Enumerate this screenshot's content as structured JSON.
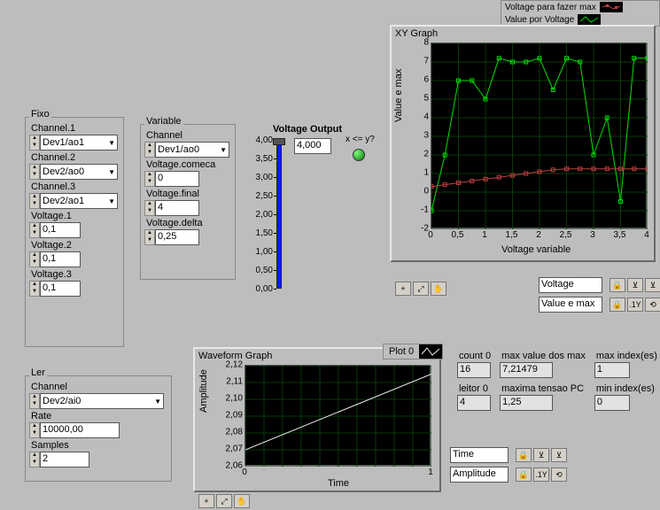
{
  "legend": {
    "series1": {
      "label": "Voltage para fazer max",
      "color": "#c04040"
    },
    "series2": {
      "label": "Value por Voltage",
      "color": "#00e000"
    }
  },
  "xy_graph": {
    "title": "XY Graph",
    "xlabel": "Voltage variable",
    "ylabel": "Value e max",
    "xticks": [
      "0",
      "0,5",
      "1",
      "1,5",
      "2",
      "2,5",
      "3",
      "3,5",
      "4"
    ],
    "yticks": [
      "-2",
      "-1",
      "0",
      "1",
      "2",
      "3",
      "4",
      "5",
      "6",
      "7",
      "8"
    ],
    "xlim": [
      0,
      4
    ],
    "ylim": [
      -2,
      8
    ],
    "series1_points": [
      [
        0,
        0.3
      ],
      [
        0.25,
        0.4
      ],
      [
        0.5,
        0.5
      ],
      [
        0.75,
        0.6
      ],
      [
        1,
        0.7
      ],
      [
        1.25,
        0.8
      ],
      [
        1.5,
        0.9
      ],
      [
        1.75,
        1.0
      ],
      [
        2,
        1.1
      ],
      [
        2.25,
        1.2
      ],
      [
        2.5,
        1.25
      ],
      [
        2.75,
        1.25
      ],
      [
        3,
        1.25
      ],
      [
        3.25,
        1.25
      ],
      [
        3.5,
        1.25
      ],
      [
        3.75,
        1.25
      ],
      [
        4,
        1.25
      ]
    ],
    "series2_points": [
      [
        0,
        -1
      ],
      [
        0.25,
        2
      ],
      [
        0.5,
        6
      ],
      [
        0.75,
        6
      ],
      [
        1,
        5
      ],
      [
        1.25,
        7.2
      ],
      [
        1.5,
        7
      ],
      [
        1.75,
        7
      ],
      [
        2,
        7.2
      ],
      [
        2.25,
        5.5
      ],
      [
        2.5,
        7.2
      ],
      [
        2.75,
        7
      ],
      [
        3,
        2
      ],
      [
        3.25,
        4
      ],
      [
        3.5,
        -0.5
      ],
      [
        3.75,
        7.2
      ],
      [
        4,
        7.2
      ]
    ],
    "scale_x_label": "Voltage",
    "scale_y_label": "Value e max"
  },
  "fixo": {
    "title": "Fixo",
    "ch1_label": "Channel.1",
    "ch1_value": "Dev1/ao1",
    "ch2_label": "Channel.2",
    "ch2_value": "Dev2/ao0",
    "ch3_label": "Channel.3",
    "ch3_value": "Dev2/ao1",
    "v1_label": "Voltage.1",
    "v1_value": "0,1",
    "v2_label": "Voltage.2",
    "v2_value": "0,1",
    "v3_label": "Voltage.3",
    "v3_value": "0,1"
  },
  "variable": {
    "title": "Variable",
    "ch_label": "Channel",
    "ch_value": "Dev1/ao0",
    "vcomeca_label": "Voltage.comeca",
    "vcomeca_value": "0",
    "vfinal_label": "Voltage.final",
    "vfinal_value": "4",
    "vdelta_label": "Voltage.delta",
    "vdelta_value": "0,25"
  },
  "voltage_output": {
    "title": "Voltage Output",
    "indicator": "4,000",
    "xley_label": "x <= y?",
    "scale": [
      "0,00",
      "0,50",
      "1,00",
      "1,50",
      "2,00",
      "2,50",
      "3,00",
      "3,50",
      "4,00"
    ]
  },
  "ler": {
    "title": "Ler",
    "ch_label": "Channel",
    "ch_value": "Dev2/ai0",
    "rate_label": "Rate",
    "rate_value": "10000,00",
    "samples_label": "Samples",
    "samples_value": "2"
  },
  "waveform": {
    "title": "Waveform Graph",
    "plot_legend": "Plot 0",
    "xlabel": "Time",
    "ylabel": "Amplitude",
    "xticks": [
      "0",
      "1"
    ],
    "yticks": [
      "2,06",
      "2,07",
      "2,08",
      "2,09",
      "2,10",
      "2,11",
      "2,12"
    ],
    "xlim": [
      0,
      1
    ],
    "ylim": [
      2.06,
      2.12
    ],
    "points": [
      [
        0,
        2.07
      ],
      [
        1,
        2.115
      ]
    ],
    "line_color": "#f0f0f0",
    "scale_x_label": "Time",
    "scale_y_label": "Amplitude"
  },
  "stats": {
    "count0_label": "count 0",
    "count0_value": "16",
    "leitor0_label": "leitor 0",
    "leitor0_value": "4",
    "maxvalue_label": "max value dos max",
    "maxvalue_value": "7,21479",
    "maxtensao_label": "maxima tensao PC",
    "maxtensao_value": "1,25",
    "maxindex_label": "max index(es)",
    "maxindex_value": "1",
    "minindex_label": "min index(es)",
    "minindex_value": "0"
  }
}
